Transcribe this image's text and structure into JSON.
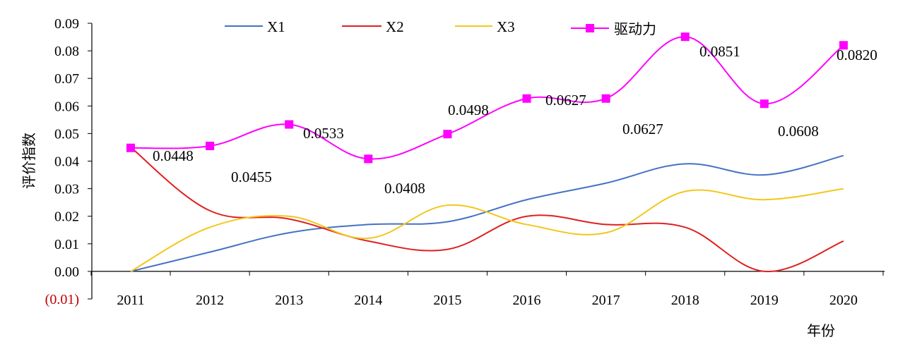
{
  "chart_data": {
    "type": "line",
    "x": [
      "2011",
      "2012",
      "2013",
      "2014",
      "2015",
      "2016",
      "2017",
      "2018",
      "2019",
      "2020"
    ],
    "series": [
      {
        "name": "X1",
        "color": "#4472C4",
        "marker": "none",
        "values": [
          0.0,
          0.007,
          0.014,
          0.017,
          0.018,
          0.026,
          0.032,
          0.039,
          0.035,
          0.042
        ]
      },
      {
        "name": "X2",
        "color": "#E02020",
        "marker": "none",
        "values": [
          0.045,
          0.022,
          0.019,
          0.011,
          0.008,
          0.02,
          0.017,
          0.016,
          0.0,
          0.011
        ]
      },
      {
        "name": "X3",
        "color": "#F2C71C",
        "marker": "none",
        "values": [
          0.0,
          0.016,
          0.02,
          0.012,
          0.024,
          0.017,
          0.014,
          0.029,
          0.026,
          0.03
        ]
      },
      {
        "name": "驱动力",
        "color": "#FF00FF",
        "marker": "square",
        "values": [
          0.0448,
          0.0455,
          0.0533,
          0.0408,
          0.0498,
          0.0627,
          0.0627,
          0.0851,
          0.0608,
          0.082
        ]
      }
    ],
    "data_labels": [
      "0.0448",
      "0.0455",
      "0.0533",
      "0.0408",
      "0.0498",
      "0.0627",
      "0.0627",
      "0.0851",
      "0.0608",
      "0.0820"
    ],
    "y_ticks": [
      "0.09",
      "0.08",
      "0.07",
      "0.06",
      "0.05",
      "0.04",
      "0.03",
      "0.02",
      "0.01",
      "0.00",
      "(0.01)"
    ],
    "ylim": [
      -0.01,
      0.09
    ],
    "ylabel": "评价指数",
    "xlabel": "年份",
    "title": "",
    "grid": false,
    "legend_position": "top-center",
    "negative_tick_color": "#C00000"
  }
}
